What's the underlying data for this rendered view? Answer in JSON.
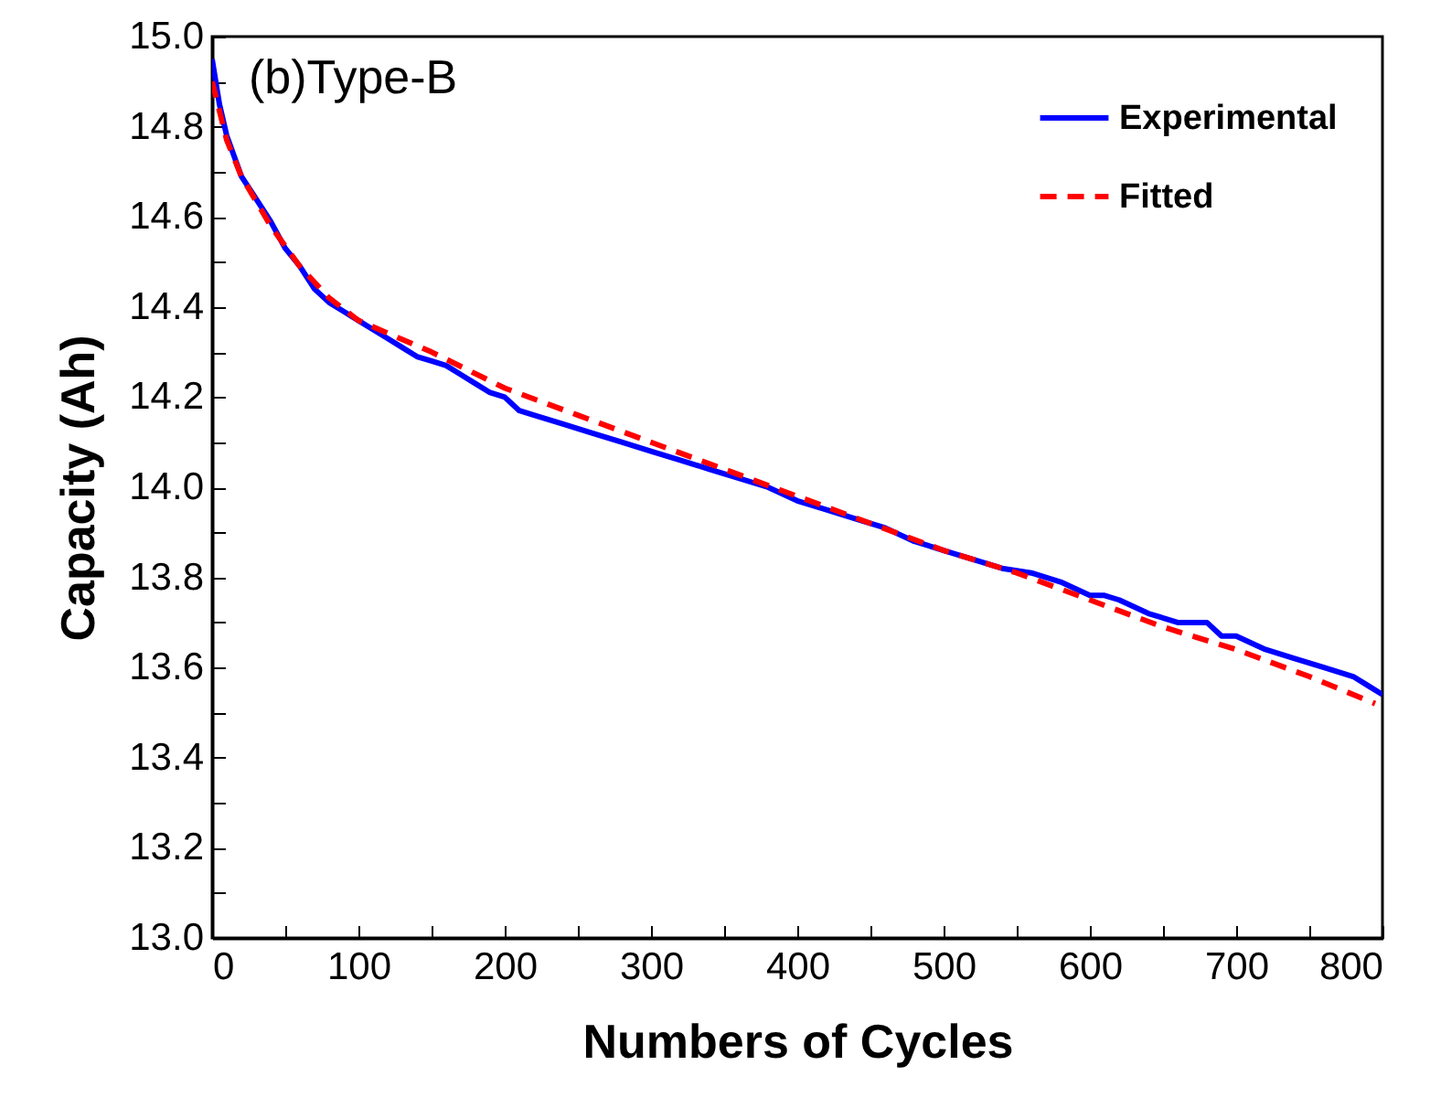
{
  "chart_data": {
    "type": "line",
    "xlabel": "Numbers of Cycles",
    "ylabel": "Capacity (Ah)",
    "annotations": [
      "(b)Type-B"
    ],
    "legend": "top right",
    "grid": false,
    "xlim": [
      0,
      800
    ],
    "ylim": [
      13.0,
      15.0
    ],
    "xticks": [
      0,
      {
        "value": 50,
        "label": null
      },
      100,
      {
        "value": 150,
        "label": null
      },
      200,
      {
        "value": 250,
        "label": null
      },
      300,
      {
        "value": 350,
        "label": null
      },
      400,
      {
        "value": 450,
        "label": null
      },
      500,
      {
        "value": 550,
        "label": null
      },
      600,
      {
        "value": 650,
        "label": null
      },
      700,
      {
        "value": 750,
        "label": null
      },
      800
    ],
    "yticks": [
      {
        "value": 13.0,
        "label": "13.0"
      },
      {
        "value": 13.1,
        "label": null
      },
      13.2,
      {
        "value": 13.3,
        "label": null
      },
      13.4,
      {
        "value": 13.5,
        "label": null
      },
      13.6,
      {
        "value": 13.7,
        "label": null
      },
      13.8,
      {
        "value": 13.9,
        "label": null
      },
      {
        "value": 14.0,
        "label": "14.0"
      },
      {
        "value": 14.1,
        "label": null
      },
      14.2,
      {
        "value": 14.3,
        "label": null
      },
      14.4,
      {
        "value": 14.5,
        "label": null
      },
      14.6,
      {
        "value": 14.7,
        "label": null
      },
      14.8,
      {
        "value": 14.9,
        "label": null
      },
      {
        "value": 15.0,
        "label": "15.0"
      }
    ],
    "series": [
      {
        "name": "Experimental",
        "color": "#0000ff",
        "line_style": "solid",
        "x": [
          0,
          5,
          10,
          20,
          30,
          40,
          50,
          60,
          70,
          80,
          90,
          100,
          110,
          120,
          130,
          140,
          150,
          160,
          170,
          180,
          190,
          200,
          210,
          220,
          240,
          260,
          280,
          300,
          320,
          340,
          360,
          380,
          400,
          420,
          440,
          460,
          480,
          500,
          520,
          540,
          560,
          580,
          600,
          610,
          620,
          640,
          660,
          680,
          690,
          700,
          720,
          740,
          760,
          780,
          790,
          800
        ],
        "values": [
          14.95,
          14.85,
          14.78,
          14.69,
          14.64,
          14.59,
          14.53,
          14.49,
          14.44,
          14.41,
          14.39,
          14.37,
          14.35,
          14.33,
          14.31,
          14.29,
          14.28,
          14.27,
          14.25,
          14.23,
          14.21,
          14.2,
          14.17,
          14.16,
          14.14,
          14.12,
          14.1,
          14.08,
          14.06,
          14.04,
          14.02,
          14.0,
          13.97,
          13.95,
          13.93,
          13.91,
          13.88,
          13.86,
          13.84,
          13.82,
          13.81,
          13.79,
          13.76,
          13.76,
          13.75,
          13.72,
          13.7,
          13.7,
          13.67,
          13.67,
          13.64,
          13.62,
          13.6,
          13.58,
          13.56,
          13.54
        ]
      },
      {
        "name": "Fitted",
        "color": "#ff0000",
        "line_style": "dashed",
        "x": [
          0,
          10,
          20,
          40,
          60,
          80,
          100,
          150,
          200,
          250,
          300,
          350,
          400,
          450,
          500,
          550,
          600,
          650,
          700,
          750,
          795
        ],
        "values": [
          14.9,
          14.77,
          14.69,
          14.58,
          14.49,
          14.42,
          14.37,
          14.3,
          14.22,
          14.16,
          14.1,
          14.04,
          13.98,
          13.92,
          13.86,
          13.81,
          13.75,
          13.69,
          13.64,
          13.58,
          13.52
        ]
      }
    ]
  }
}
